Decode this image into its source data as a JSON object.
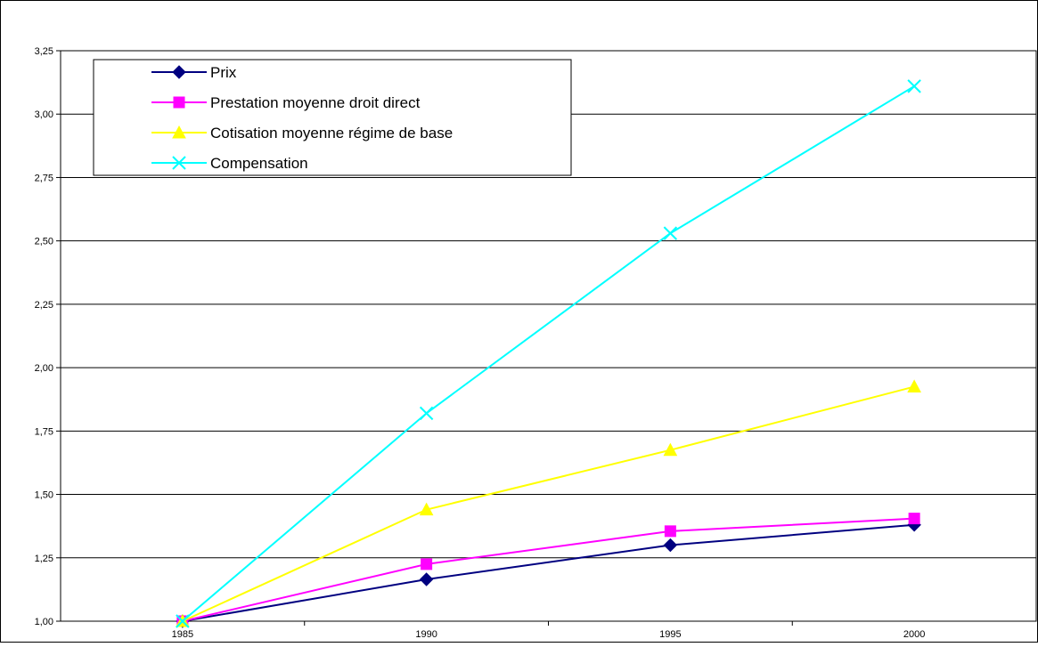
{
  "chart_data": {
    "type": "line",
    "title": "",
    "xlabel": "",
    "ylabel": "",
    "categories": [
      "1985",
      "1990",
      "1995",
      "2000"
    ],
    "ylim": [
      1.0,
      3.25
    ],
    "yticks": [
      "1,00",
      "1,25",
      "1,50",
      "1,75",
      "2,00",
      "2,25",
      "2,50",
      "2,75",
      "3,00",
      "3,25"
    ],
    "grid": true,
    "legend_position": "top-left",
    "series": [
      {
        "name": "Prix",
        "color": "#000080",
        "marker": "diamond",
        "values": [
          1.0,
          1.165,
          1.3,
          1.38
        ]
      },
      {
        "name": "Prestation moyenne droit direct",
        "color": "#ff00ff",
        "marker": "square",
        "values": [
          1.0,
          1.225,
          1.355,
          1.405
        ]
      },
      {
        "name": "Cotisation moyenne régime de base",
        "color": "#ffff00",
        "marker": "triangle",
        "values": [
          1.0,
          1.44,
          1.675,
          1.925
        ]
      },
      {
        "name": "Compensation",
        "color": "#00ffff",
        "marker": "x",
        "values": [
          1.0,
          1.82,
          2.53,
          3.11
        ]
      }
    ]
  }
}
